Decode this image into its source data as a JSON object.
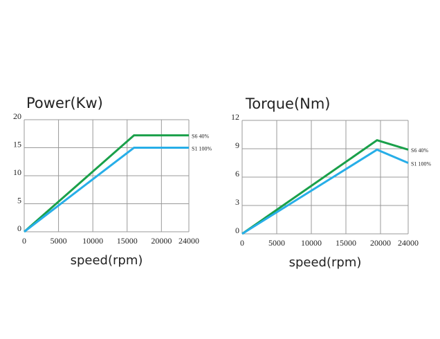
{
  "chart_data": [
    {
      "type": "line",
      "title": "Power(Kw)",
      "x_label": "speed(rpm)",
      "xlim": [
        0,
        24000
      ],
      "xticks": [
        0,
        5000,
        10000,
        15000,
        20000,
        24000
      ],
      "ylim": [
        0,
        20
      ],
      "yticks": [
        0,
        5,
        10,
        15,
        20
      ],
      "grid": true,
      "series": [
        {
          "name": "S6 40%",
          "color": "#1aa04a",
          "x": [
            0,
            16000,
            24000
          ],
          "values": [
            0,
            17.2,
            17.2
          ]
        },
        {
          "name": "S1 100%",
          "color": "#27aee8",
          "x": [
            0,
            16000,
            24000
          ],
          "values": [
            0,
            15,
            15
          ]
        }
      ]
    },
    {
      "type": "line",
      "title": "Torque(Nm)",
      "x_label": "speed(rpm)",
      "xlim": [
        0,
        24000
      ],
      "xticks": [
        0,
        5000,
        10000,
        15000,
        20000,
        24000
      ],
      "ylim": [
        0,
        12
      ],
      "yticks": [
        0,
        3,
        6,
        9,
        12
      ],
      "grid": true,
      "series": [
        {
          "name": "S6 40%",
          "color": "#1aa04a",
          "x": [
            0,
            19500,
            24000
          ],
          "values": [
            0,
            9.9,
            8.9
          ]
        },
        {
          "name": "S1 100%",
          "color": "#27aee8",
          "x": [
            0,
            19500,
            24000
          ],
          "values": [
            0,
            8.9,
            7.5
          ]
        }
      ]
    }
  ]
}
